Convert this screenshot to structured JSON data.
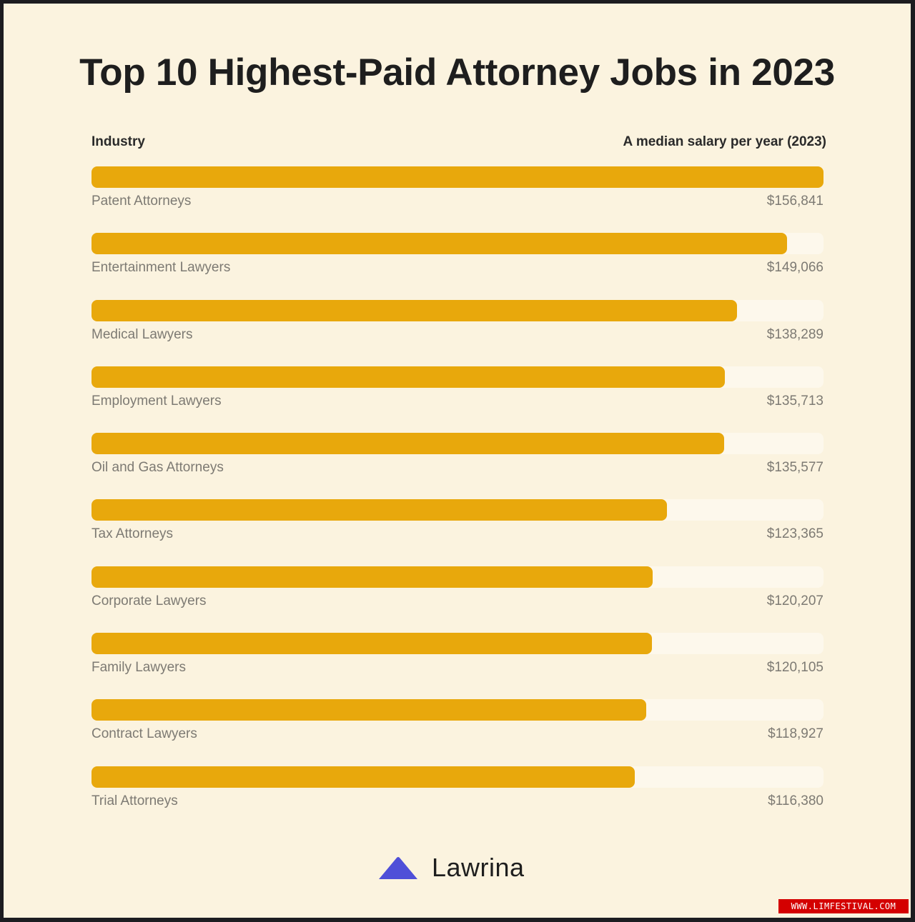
{
  "title": "Top 10 Highest-Paid Attorney Jobs in 2023",
  "header": {
    "left": "Industry",
    "right": "A median salary per year (2023)"
  },
  "brand": "Lawrina",
  "watermark": "WWW.LIMFESTIVAL.COM",
  "colors": {
    "bar": "#e8a80c",
    "track": "#fdf8ec",
    "background": "#fbf3df",
    "brand_mark": "#4f4fd8"
  },
  "chart_data": {
    "type": "bar",
    "orientation": "horizontal",
    "title": "Top 10 Highest-Paid Attorney Jobs in 2023",
    "xlabel": "A median salary per year (2023)",
    "ylabel": "Industry",
    "xlim": [
      0,
      156841
    ],
    "grid": false,
    "categories": [
      "Patent Attorneys",
      "Entertainment Lawyers",
      "Medical Lawyers",
      "Employment Lawyers",
      "Oil and Gas Attorneys",
      "Tax Attorneys",
      "Corporate Lawyers",
      "Family Lawyers",
      "Contract Lawyers",
      "Trial Attorneys"
    ],
    "values": [
      156841,
      149066,
      138289,
      135713,
      135577,
      123365,
      120207,
      120105,
      118927,
      116380
    ],
    "value_labels": [
      "$156,841",
      "$149,066",
      "$138,289",
      "$135,713",
      "$135,577",
      "$123,365",
      "$120,207",
      "$120,105",
      "$118,927",
      "$116,380"
    ]
  }
}
